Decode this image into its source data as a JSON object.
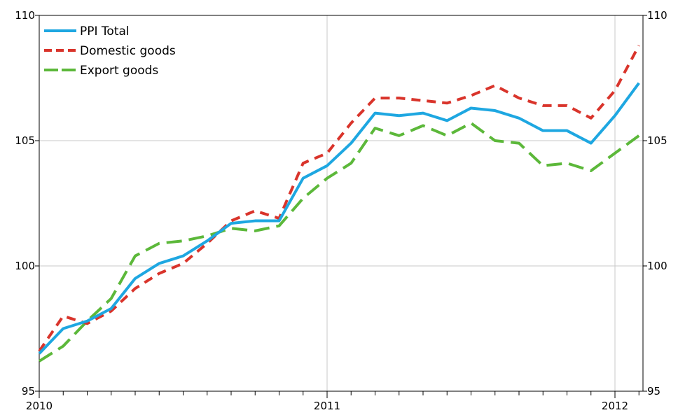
{
  "chart_data": {
    "type": "line",
    "x": [
      "2010-01",
      "2010-02",
      "2010-03",
      "2010-04",
      "2010-05",
      "2010-06",
      "2010-07",
      "2010-08",
      "2010-09",
      "2010-10",
      "2010-11",
      "2010-12",
      "2011-01",
      "2011-02",
      "2011-03",
      "2011-04",
      "2011-05",
      "2011-06",
      "2011-07",
      "2011-08",
      "2011-09",
      "2011-10",
      "2011-11",
      "2011-12",
      "2012-01",
      "2012-02"
    ],
    "series": [
      {
        "name": "PPI Total",
        "color": "#1ea7e1",
        "style": "solid",
        "values": [
          96.5,
          97.5,
          97.8,
          98.3,
          99.5,
          100.1,
          100.4,
          101.0,
          101.7,
          101.8,
          101.8,
          103.5,
          104.0,
          104.9,
          106.1,
          106.0,
          106.1,
          105.8,
          106.3,
          106.2,
          105.9,
          105.4,
          105.4,
          104.9,
          106.0,
          107.3
        ]
      },
      {
        "name": "Domestic goods",
        "color": "#d9342b",
        "style": "dashed",
        "values": [
          96.6,
          98.0,
          97.7,
          98.2,
          99.1,
          99.7,
          100.1,
          100.9,
          101.8,
          102.2,
          101.9,
          104.1,
          104.5,
          105.7,
          106.7,
          106.7,
          106.6,
          106.5,
          106.8,
          107.2,
          106.7,
          106.4,
          106.4,
          105.9,
          107.0,
          108.8
        ]
      },
      {
        "name": "Export goods",
        "color": "#5cb83a",
        "style": "dashed",
        "values": [
          96.2,
          96.8,
          97.8,
          98.7,
          100.4,
          100.9,
          101.0,
          101.2,
          101.5,
          101.4,
          101.6,
          102.7,
          103.5,
          104.1,
          105.5,
          105.2,
          105.6,
          105.2,
          105.7,
          105.0,
          104.9,
          104.0,
          104.1,
          103.8,
          104.5,
          105.2
        ]
      }
    ],
    "xticks": [
      "2010",
      "2011",
      "2012"
    ],
    "ylim": [
      95,
      110
    ],
    "yticks": [
      95,
      100,
      105,
      110
    ],
    "grid": true,
    "legend_position": "top-left"
  }
}
